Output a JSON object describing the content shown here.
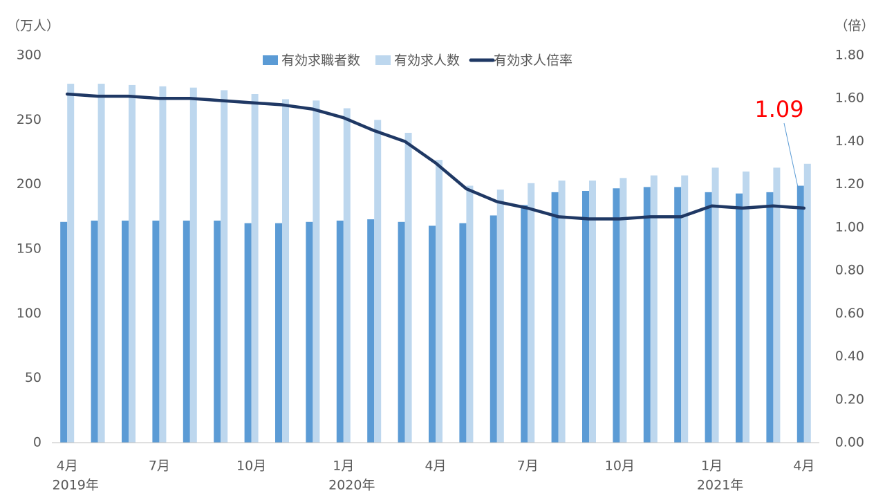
{
  "chart_data": {
    "type": "bar_line",
    "y_label": "（万人）",
    "y2_label": "（倍）",
    "categories": [
      "4月",
      null,
      null,
      "7月",
      null,
      null,
      "10月",
      null,
      null,
      "1月",
      null,
      null,
      "4月",
      null,
      null,
      "7月",
      null,
      null,
      "10月",
      null,
      null,
      "1月",
      null,
      null,
      "4月"
    ],
    "category_years": [
      "2019年",
      null,
      null,
      null,
      null,
      null,
      null,
      null,
      null,
      "2020年",
      null,
      null,
      null,
      null,
      null,
      null,
      null,
      null,
      null,
      null,
      null,
      "2021年",
      null,
      null,
      null
    ],
    "series": [
      {
        "name": "有効求職者数",
        "type": "bar",
        "color": "#5b9bd5",
        "values": [
          171,
          172,
          172,
          172,
          172,
          172,
          170,
          170,
          171,
          172,
          173,
          171,
          168,
          170,
          176,
          184,
          194,
          195,
          197,
          198,
          198,
          194,
          193,
          194,
          199
        ]
      },
      {
        "name": "有効求人数",
        "type": "bar",
        "color": "#bdd7ee",
        "values": [
          278,
          278,
          277,
          276,
          275,
          273,
          270,
          266,
          265,
          259,
          250,
          240,
          219,
          199,
          196,
          201,
          203,
          203,
          205,
          207,
          207,
          213,
          210,
          213,
          216
        ]
      },
      {
        "name": "有効求人倍率",
        "type": "line",
        "axis": "y2",
        "color": "#1f3864",
        "values": [
          1.62,
          1.61,
          1.61,
          1.6,
          1.6,
          1.59,
          1.58,
          1.57,
          1.55,
          1.51,
          1.45,
          1.4,
          1.3,
          1.18,
          1.12,
          1.09,
          1.05,
          1.04,
          1.04,
          1.05,
          1.05,
          1.1,
          1.09,
          1.1,
          1.09
        ]
      }
    ],
    "annotation": "1.09",
    "annotation_color": "#ff0000",
    "ylim": [
      0,
      300
    ],
    "yticks": [
      0,
      50,
      100,
      150,
      200,
      250,
      300
    ],
    "y2lim": [
      0,
      1.8
    ],
    "y2ticks": [
      {
        "value": 0,
        "label": "0.00"
      },
      {
        "value": 0.2,
        "label": "0.20"
      },
      {
        "value": 0.4,
        "label": "0.40"
      },
      {
        "value": 0.6,
        "label": "0.60"
      },
      {
        "value": 0.8,
        "label": "0.80"
      },
      {
        "value": 1.0,
        "label": "1.00"
      },
      {
        "value": 1.2,
        "label": "1.20"
      },
      {
        "value": 1.4,
        "label": "1.40"
      },
      {
        "value": 1.6,
        "label": "1.60"
      },
      {
        "value": 1.8,
        "label": "1.80"
      }
    ],
    "legend": "top"
  }
}
